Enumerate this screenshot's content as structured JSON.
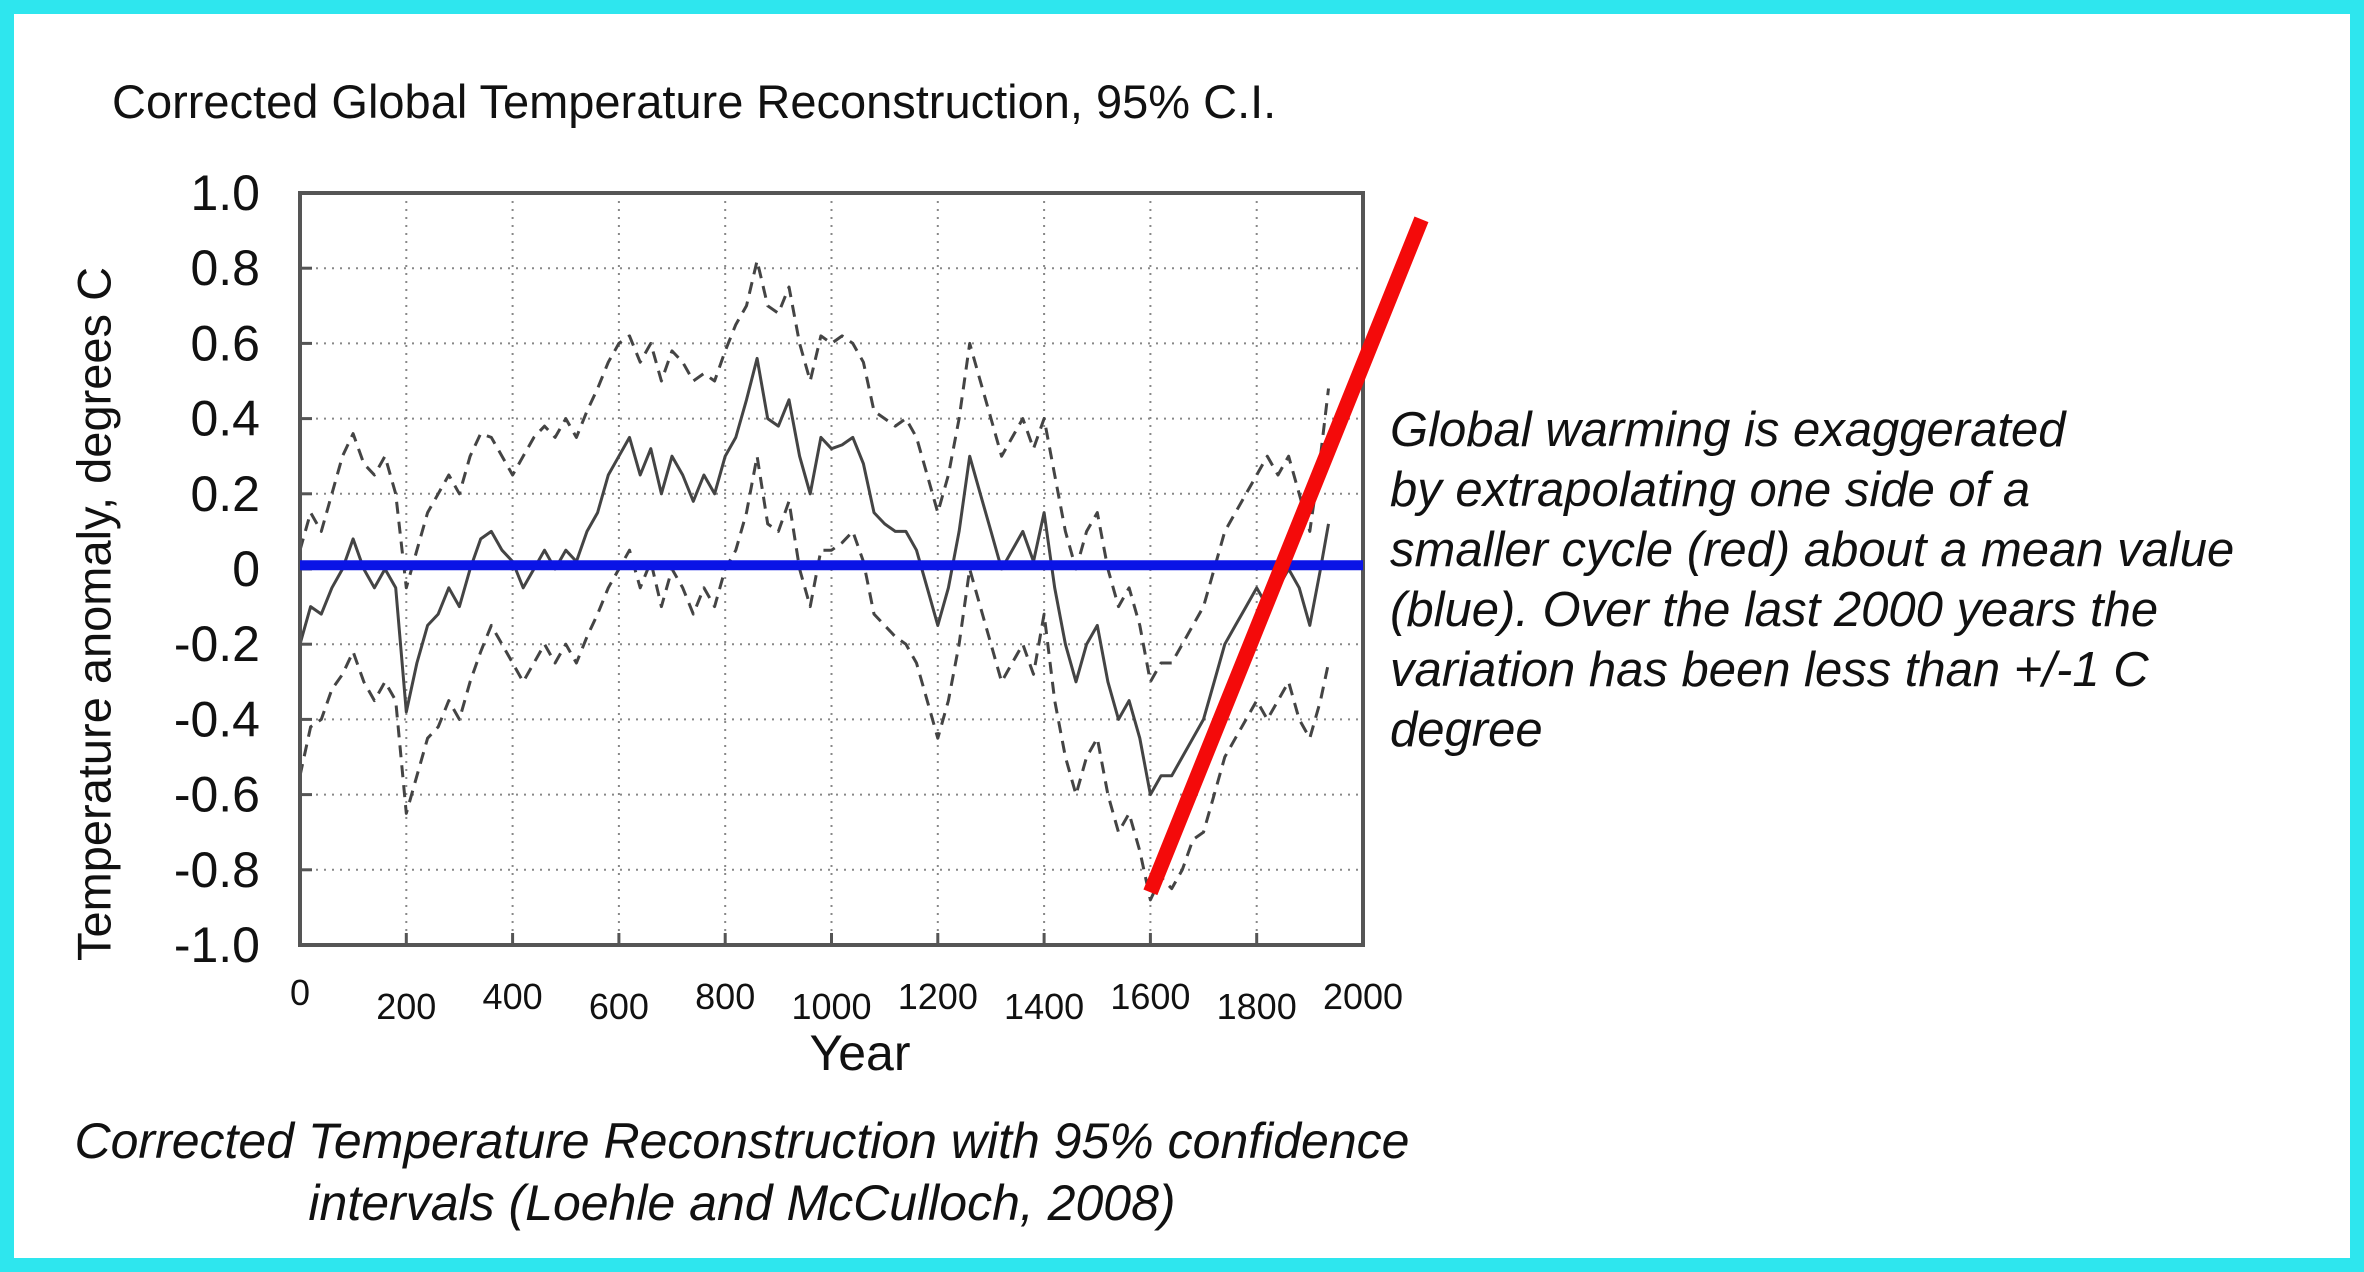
{
  "chart_data": {
    "type": "line",
    "title": "Corrected Global Temperature Reconstruction, 95% C.I.",
    "xlabel": "Year",
    "ylabel": "Temperature anomaly, degrees C",
    "xlim": [
      0,
      2000
    ],
    "ylim": [
      -1.0,
      1.0
    ],
    "grid": true,
    "x_ticks": [
      0,
      200,
      400,
      600,
      800,
      1000,
      1200,
      1400,
      1600,
      1800,
      2000
    ],
    "x_tick_labels": [
      "0",
      "200",
      "400",
      "600",
      "800",
      "1000",
      "1200",
      "1400",
      "1600",
      "1800",
      "2000"
    ],
    "y_ticks": [
      1.0,
      0.8,
      0.6,
      0.4,
      0.2,
      0,
      -0.2,
      -0.4,
      -0.6,
      -0.8,
      -1.0
    ],
    "y_tick_labels": [
      "1.0",
      "0.8",
      "0.6",
      "0.4",
      "0.2",
      "0",
      "-0.2",
      "-0.4",
      "-0.6",
      "-0.8",
      "-1.0"
    ],
    "series": [
      {
        "name": "Reconstruction",
        "style": "solid",
        "color": "#444444",
        "x": [
          0,
          20,
          40,
          60,
          80,
          100,
          120,
          140,
          160,
          180,
          200,
          220,
          240,
          260,
          280,
          300,
          320,
          340,
          360,
          380,
          400,
          420,
          440,
          460,
          480,
          500,
          520,
          540,
          560,
          580,
          600,
          620,
          640,
          660,
          680,
          700,
          720,
          740,
          760,
          780,
          800,
          820,
          840,
          860,
          880,
          900,
          920,
          940,
          960,
          980,
          1000,
          1020,
          1040,
          1060,
          1080,
          1100,
          1120,
          1140,
          1160,
          1180,
          1200,
          1220,
          1240,
          1260,
          1280,
          1300,
          1320,
          1340,
          1360,
          1380,
          1400,
          1420,
          1440,
          1460,
          1480,
          1500,
          1520,
          1540,
          1560,
          1580,
          1600,
          1620,
          1640,
          1660,
          1680,
          1700,
          1720,
          1740,
          1760,
          1780,
          1800,
          1820,
          1840,
          1860,
          1880,
          1900,
          1920,
          1935
        ],
        "values": [
          -0.2,
          -0.1,
          -0.12,
          -0.05,
          0.0,
          0.08,
          0.0,
          -0.05,
          0.0,
          -0.05,
          -0.38,
          -0.25,
          -0.15,
          -0.12,
          -0.05,
          -0.1,
          0.0,
          0.08,
          0.1,
          0.05,
          0.02,
          -0.05,
          0.0,
          0.05,
          0.0,
          0.05,
          0.02,
          0.1,
          0.15,
          0.25,
          0.3,
          0.35,
          0.25,
          0.32,
          0.2,
          0.3,
          0.25,
          0.18,
          0.25,
          0.2,
          0.3,
          0.35,
          0.45,
          0.56,
          0.4,
          0.38,
          0.45,
          0.3,
          0.2,
          0.35,
          0.32,
          0.33,
          0.35,
          0.28,
          0.15,
          0.12,
          0.1,
          0.1,
          0.05,
          -0.05,
          -0.15,
          -0.05,
          0.1,
          0.3,
          0.2,
          0.1,
          0.0,
          0.05,
          0.1,
          0.02,
          0.15,
          -0.05,
          -0.2,
          -0.3,
          -0.2,
          -0.15,
          -0.3,
          -0.4,
          -0.35,
          -0.45,
          -0.6,
          -0.55,
          -0.55,
          -0.5,
          -0.45,
          -0.4,
          -0.3,
          -0.2,
          -0.15,
          -0.1,
          -0.05,
          -0.1,
          -0.05,
          0.0,
          -0.05,
          -0.15,
          0.0,
          0.12
        ]
      },
      {
        "name": "Upper 95% C.I.",
        "style": "dashed",
        "color": "#444444",
        "x": [
          0,
          20,
          40,
          60,
          80,
          100,
          120,
          140,
          160,
          180,
          200,
          220,
          240,
          260,
          280,
          300,
          320,
          340,
          360,
          380,
          400,
          420,
          440,
          460,
          480,
          500,
          520,
          540,
          560,
          580,
          600,
          620,
          640,
          660,
          680,
          700,
          720,
          740,
          760,
          780,
          800,
          820,
          840,
          860,
          880,
          900,
          920,
          940,
          960,
          980,
          1000,
          1020,
          1040,
          1060,
          1080,
          1100,
          1120,
          1140,
          1160,
          1180,
          1200,
          1220,
          1240,
          1260,
          1280,
          1300,
          1320,
          1340,
          1360,
          1380,
          1400,
          1420,
          1440,
          1460,
          1480,
          1500,
          1520,
          1540,
          1560,
          1580,
          1600,
          1620,
          1640,
          1660,
          1680,
          1700,
          1720,
          1740,
          1760,
          1780,
          1800,
          1820,
          1840,
          1860,
          1880,
          1900,
          1920,
          1935
        ],
        "values": [
          0.05,
          0.15,
          0.1,
          0.2,
          0.3,
          0.36,
          0.28,
          0.25,
          0.3,
          0.2,
          -0.05,
          0.05,
          0.15,
          0.2,
          0.25,
          0.2,
          0.3,
          0.36,
          0.35,
          0.3,
          0.25,
          0.3,
          0.35,
          0.38,
          0.35,
          0.4,
          0.35,
          0.42,
          0.48,
          0.55,
          0.6,
          0.62,
          0.55,
          0.6,
          0.5,
          0.58,
          0.55,
          0.5,
          0.52,
          0.5,
          0.58,
          0.65,
          0.7,
          0.82,
          0.7,
          0.68,
          0.75,
          0.6,
          0.5,
          0.62,
          0.6,
          0.62,
          0.6,
          0.55,
          0.42,
          0.4,
          0.38,
          0.4,
          0.35,
          0.25,
          0.15,
          0.25,
          0.4,
          0.6,
          0.5,
          0.4,
          0.3,
          0.35,
          0.4,
          0.32,
          0.4,
          0.25,
          0.1,
          0.0,
          0.1,
          0.15,
          0.0,
          -0.1,
          -0.05,
          -0.15,
          -0.3,
          -0.25,
          -0.25,
          -0.2,
          -0.15,
          -0.1,
          0.0,
          0.1,
          0.15,
          0.2,
          0.25,
          0.3,
          0.25,
          0.3,
          0.2,
          0.1,
          0.3,
          0.48
        ]
      },
      {
        "name": "Lower 95% C.I.",
        "style": "dashed",
        "color": "#444444",
        "x": [
          0,
          20,
          40,
          60,
          80,
          100,
          120,
          140,
          160,
          180,
          200,
          220,
          240,
          260,
          280,
          300,
          320,
          340,
          360,
          380,
          400,
          420,
          440,
          460,
          480,
          500,
          520,
          540,
          560,
          580,
          600,
          620,
          640,
          660,
          680,
          700,
          720,
          740,
          760,
          780,
          800,
          820,
          840,
          860,
          880,
          900,
          920,
          940,
          960,
          980,
          1000,
          1020,
          1040,
          1060,
          1080,
          1100,
          1120,
          1140,
          1160,
          1180,
          1200,
          1220,
          1240,
          1260,
          1280,
          1300,
          1320,
          1340,
          1360,
          1380,
          1400,
          1420,
          1440,
          1460,
          1480,
          1500,
          1520,
          1540,
          1560,
          1580,
          1600,
          1620,
          1640,
          1660,
          1680,
          1700,
          1720,
          1740,
          1760,
          1780,
          1800,
          1820,
          1840,
          1860,
          1880,
          1900,
          1920,
          1935
        ],
        "values": [
          -0.55,
          -0.42,
          -0.4,
          -0.32,
          -0.28,
          -0.22,
          -0.3,
          -0.35,
          -0.3,
          -0.35,
          -0.65,
          -0.55,
          -0.45,
          -0.42,
          -0.35,
          -0.4,
          -0.3,
          -0.22,
          -0.15,
          -0.2,
          -0.25,
          -0.3,
          -0.25,
          -0.2,
          -0.25,
          -0.2,
          -0.25,
          -0.18,
          -0.12,
          -0.05,
          0.0,
          0.05,
          -0.05,
          0.02,
          -0.1,
          0.0,
          -0.05,
          -0.12,
          -0.05,
          -0.1,
          0.0,
          0.05,
          0.15,
          0.3,
          0.12,
          0.1,
          0.18,
          0.0,
          -0.1,
          0.05,
          0.05,
          0.07,
          0.1,
          0.02,
          -0.12,
          -0.15,
          -0.18,
          -0.2,
          -0.25,
          -0.35,
          -0.45,
          -0.35,
          -0.2,
          0.0,
          -0.1,
          -0.2,
          -0.3,
          -0.25,
          -0.2,
          -0.28,
          -0.12,
          -0.35,
          -0.5,
          -0.6,
          -0.5,
          -0.45,
          -0.6,
          -0.7,
          -0.65,
          -0.75,
          -0.88,
          -0.82,
          -0.85,
          -0.8,
          -0.72,
          -0.7,
          -0.6,
          -0.5,
          -0.45,
          -0.4,
          -0.35,
          -0.4,
          -0.35,
          -0.3,
          -0.4,
          -0.45,
          -0.35,
          -0.25
        ]
      }
    ],
    "overlays": [
      {
        "name": "Mean value line",
        "color": "#0a14e6",
        "x": [
          0,
          2000
        ],
        "values": [
          0.01,
          0.01
        ]
      },
      {
        "name": "Extrapolated trend",
        "color": "#f40a0a",
        "x": [
          1600,
          2110
        ],
        "values": [
          -0.86,
          0.93
        ]
      }
    ]
  },
  "annotation": {
    "lines": [
      "Global warming is exaggerated",
      "by extrapolating one side of a",
      "smaller cycle (red) about a mean value",
      "(blue). Over the last 2000 years the",
      "variation has been less than +/-1 C",
      "degree"
    ]
  },
  "caption": {
    "line1": "Corrected Temperature Reconstruction with 95% confidence",
    "line2": "intervals (Loehle and McCulloch, 2008)"
  },
  "colors": {
    "frame": "#2ee6ee",
    "mean_line": "#0a14e6",
    "trend_line": "#f40a0a",
    "data_line": "#444444"
  }
}
